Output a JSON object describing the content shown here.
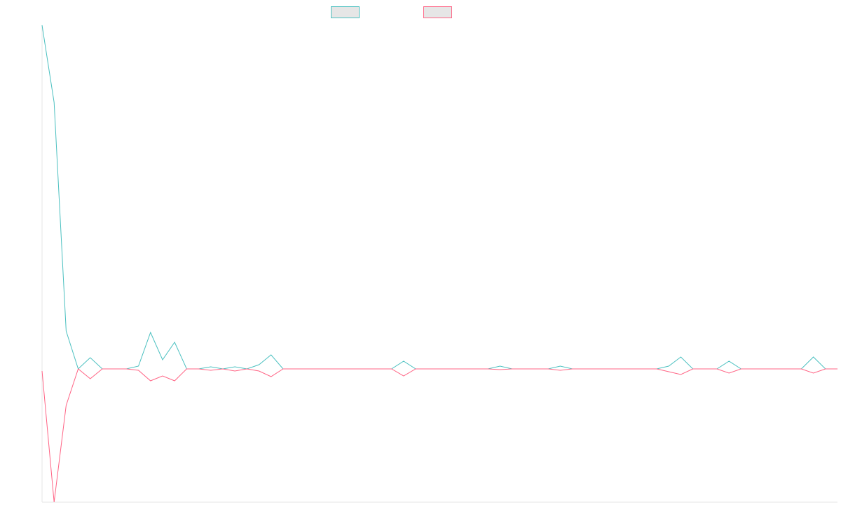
{
  "chart_data": {
    "type": "line",
    "title": "",
    "xlabel": "",
    "ylabel": "",
    "legend": "top-center",
    "grid": false,
    "ylim": [
      -190,
      490
    ],
    "series": [
      {
        "name": "",
        "color": "#4bc0c0",
        "fill": "#e6e6e6",
        "values": [
          490,
          380,
          54,
          0,
          16,
          0,
          0,
          0,
          4,
          52,
          13,
          38,
          0,
          0,
          3,
          0,
          3,
          0,
          6,
          20,
          0,
          0,
          0,
          0,
          0,
          0,
          0,
          0,
          0,
          0,
          11,
          0,
          0,
          0,
          0,
          0,
          0,
          0,
          4,
          0,
          0,
          0,
          0,
          4,
          0,
          0,
          0,
          0,
          0,
          0,
          0,
          0,
          4,
          17,
          0,
          0,
          0,
          11,
          0,
          0,
          0,
          0,
          0,
          0,
          17,
          0,
          0
        ]
      },
      {
        "name": "",
        "color": "#ff6384",
        "fill": "#e6e6e6",
        "values": [
          -3,
          -190,
          -52,
          0,
          -14,
          0,
          0,
          0,
          -2,
          -17,
          -10,
          -17,
          0,
          0,
          -2,
          0,
          -3,
          0,
          -3,
          -11,
          0,
          0,
          0,
          0,
          0,
          0,
          0,
          0,
          0,
          0,
          -10,
          0,
          0,
          0,
          0,
          0,
          0,
          0,
          -1,
          0,
          0,
          0,
          0,
          -2,
          0,
          0,
          0,
          0,
          0,
          0,
          0,
          0,
          -4,
          -8,
          0,
          0,
          0,
          -6,
          0,
          0,
          0,
          0,
          0,
          0,
          -6,
          0,
          0
        ]
      }
    ]
  }
}
